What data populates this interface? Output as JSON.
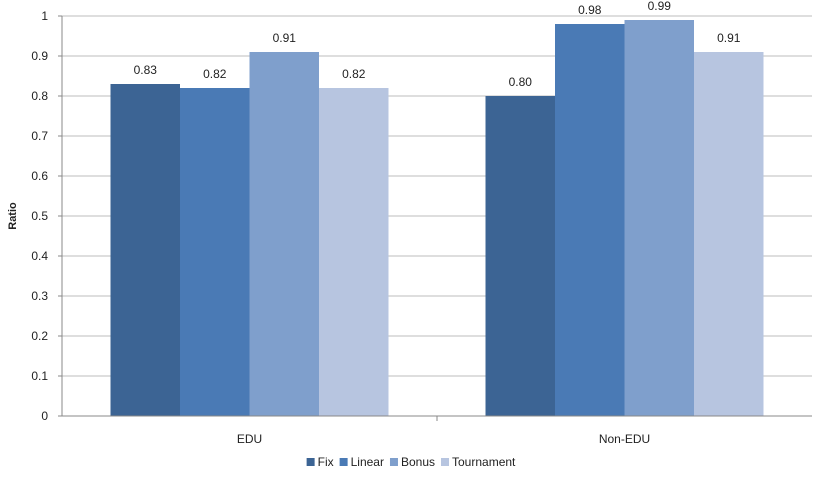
{
  "chart_data": {
    "type": "bar",
    "ylabel": "Ratio",
    "xlabel": "",
    "ylim": [
      0,
      1
    ],
    "yticks": [
      "0",
      "0.1",
      "0.2",
      "0.3",
      "0.4",
      "0.5",
      "0.6",
      "0.7",
      "0.8",
      "0.9",
      "1"
    ],
    "categories": [
      "EDU",
      "Non-EDU"
    ],
    "series": [
      {
        "name": "Fix",
        "color": "#3c6494",
        "values": [
          0.83,
          0.8
        ],
        "labels": [
          "0.83",
          "0.80"
        ]
      },
      {
        "name": "Linear",
        "color": "#4a7ab5",
        "values": [
          0.82,
          0.98
        ],
        "labels": [
          "0.82",
          "0.98"
        ]
      },
      {
        "name": "Bonus",
        "color": "#7f9fcc",
        "values": [
          0.91,
          0.99
        ],
        "labels": [
          "0.91",
          "0.99"
        ]
      },
      {
        "name": "Tournament",
        "color": "#b7c5e0",
        "values": [
          0.82,
          0.91
        ],
        "labels": [
          "0.82",
          "0.91"
        ]
      }
    ],
    "grid": true,
    "legend_position": "bottom"
  }
}
